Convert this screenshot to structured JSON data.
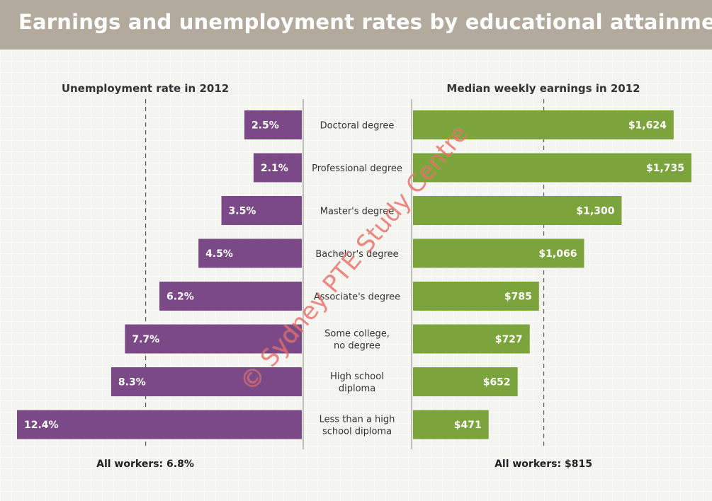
{
  "title": "Earnings and unemployment rates by educational attainment",
  "watermark_text": "© Sydney PTE Study Centre",
  "colors": {
    "header": "#b2aa9d",
    "unemployment_bar": "#7b4a86",
    "earnings_bar": "#7ba43c",
    "background": "#f4f4f1"
  },
  "chart_data": [
    {
      "type": "bar",
      "orientation": "horizontal",
      "direction": "right-to-left",
      "title": "Unemployment rate in 2012",
      "categories": [
        "Doctoral degree",
        "Professional degree",
        "Master's degree",
        "Bachelor's degree",
        "Associate's degree",
        "Some college,\nno degree",
        "High school\ndiploma",
        "Less than a high\nschool diploma"
      ],
      "values": [
        2.5,
        2.1,
        3.5,
        4.5,
        6.2,
        7.7,
        8.3,
        12.4
      ],
      "labels": [
        "2.5%",
        "2.1%",
        "3.5%",
        "4.5%",
        "6.2%",
        "7.7%",
        "8.3%",
        "12.4%"
      ],
      "unit": "%",
      "xlim": [
        0,
        12.4
      ],
      "reference": {
        "value": 6.8,
        "label": "All workers: 6.8%"
      }
    },
    {
      "type": "bar",
      "orientation": "horizontal",
      "direction": "left-to-right",
      "title": "Median weekly earnings in 2012",
      "categories": [
        "Doctoral degree",
        "Professional degree",
        "Master's degree",
        "Bachelor's degree",
        "Associate's degree",
        "Some college,\nno degree",
        "High school\ndiploma",
        "Less than a high\nschool diploma"
      ],
      "values": [
        1624,
        1735,
        1300,
        1066,
        785,
        727,
        652,
        471
      ],
      "labels": [
        "$1,624",
        "$1,735",
        "$1,300",
        "$1,066",
        "$785",
        "$727",
        "$652",
        "$471"
      ],
      "unit": "$",
      "xlim": [
        0,
        1735
      ],
      "reference": {
        "value": 815,
        "label": "All workers: $815"
      }
    }
  ]
}
